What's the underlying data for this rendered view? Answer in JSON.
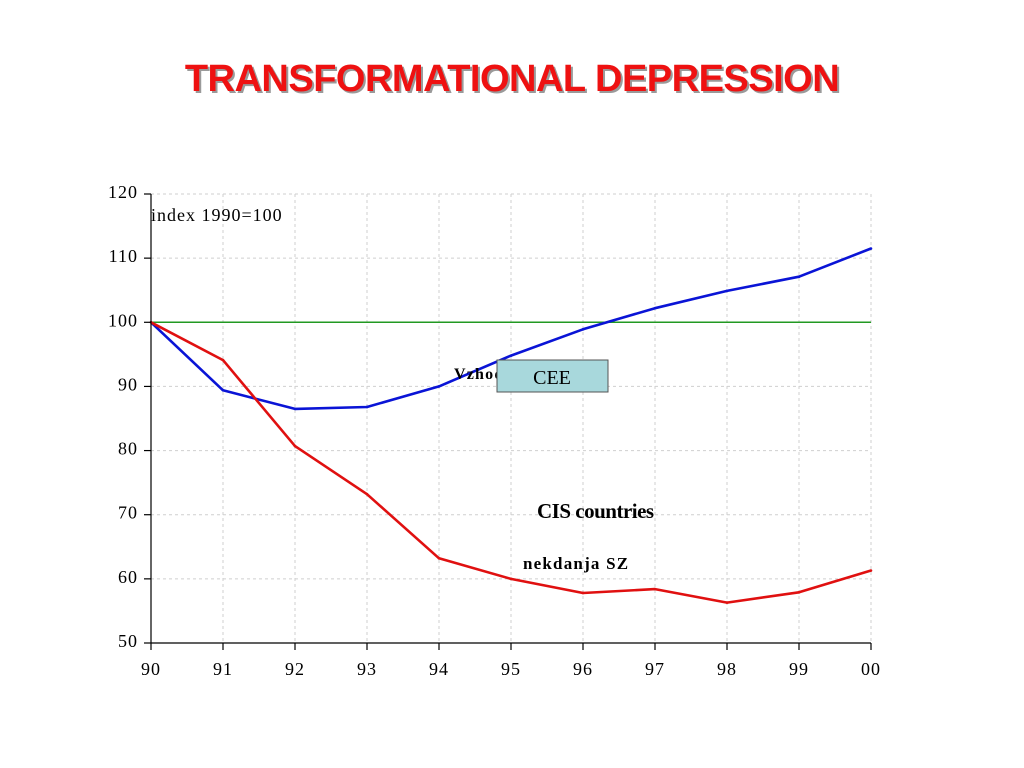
{
  "title": "TRANSFORMATIONAL DEPRESSION",
  "chart_data": {
    "type": "line",
    "x": [
      "90",
      "91",
      "92",
      "93",
      "94",
      "95",
      "96",
      "97",
      "98",
      "99",
      "00"
    ],
    "ylim": [
      50,
      120
    ],
    "yticks": [
      50,
      60,
      70,
      80,
      90,
      100,
      110,
      120
    ],
    "grid": true,
    "ylabel": "index 1990=100",
    "series": [
      {
        "name": "Vzhodna Evropa",
        "color": "#0a14d6",
        "values": [
          100,
          89.4,
          86.5,
          86.8,
          90.0,
          94.8,
          98.9,
          102.2,
          104.9,
          107.1,
          111.5
        ]
      },
      {
        "name": "nekdanja SZ",
        "color": "#e01010",
        "values": [
          100,
          94.1,
          80.7,
          73.2,
          63.2,
          60.0,
          57.8,
          58.4,
          56.3,
          57.9,
          61.3
        ]
      }
    ],
    "reference_line": {
      "value": 100,
      "color": "#229922"
    },
    "annotations": {
      "cee_box": "CEE",
      "cis": "CIS countries"
    }
  }
}
